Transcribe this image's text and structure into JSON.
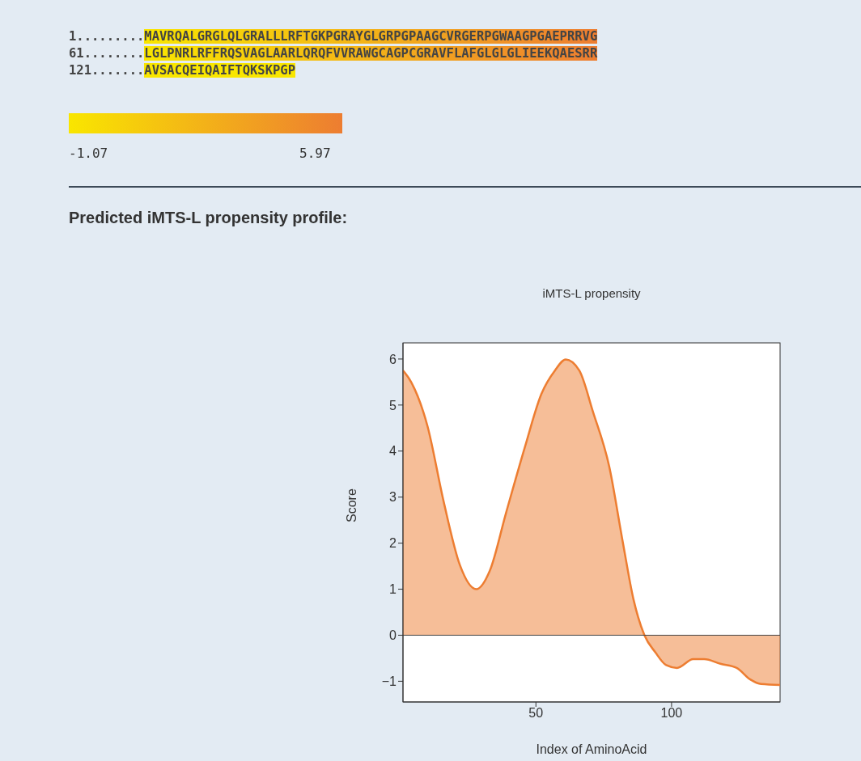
{
  "chart_data": [
    {
      "type": "other",
      "annotations": [
        "1.........MAVRQALGRGLQLGRALLLRFTGKPGRAYGLGRPGPAAGCVRGERPGWAAGPGAEPRRVG",
        "61........LGLPNRLRFFRQSVAGLAARLQRQFVVRAWGCAGPCGRAVFLAFGLGLGLIEEKQAESRR",
        "121.......AVSACQEIQAIFTQKSKPGP",
        "-1.07",
        "5.97",
        "Predicted iMTS-L propensity profile:"
      ],
      "colors": [
        "#f9e600",
        "#ed7d31"
      ]
    },
    {
      "type": "area",
      "title": "iMTS-L propensity",
      "xlabel": "Index of AminoAcid",
      "ylabel": "Score",
      "x": [
        1,
        4,
        10,
        16,
        22,
        28,
        33,
        39,
        46,
        52,
        57,
        61,
        66,
        71,
        77,
        82,
        86,
        90,
        94,
        98,
        102,
        108,
        112,
        118,
        124,
        129,
        133,
        140
      ],
      "series": [
        {
          "color": "#ed7d31",
          "values": [
            5.75,
            5.5,
            4.55,
            2.9,
            1.52,
            1.0,
            1.4,
            2.66,
            4.1,
            5.24,
            5.75,
            5.99,
            5.75,
            4.86,
            3.67,
            2.03,
            0.77,
            0,
            -0.37,
            -0.65,
            -0.71,
            -0.52,
            -0.52,
            -0.62,
            -0.71,
            -0.96,
            -1.06,
            -1.08
          ]
        }
      ],
      "xlim": [
        1,
        140
      ],
      "xticks": [
        50,
        100
      ],
      "ylim": [
        -1.45,
        6.35
      ],
      "yticks": [
        -1,
        0,
        1,
        2,
        3,
        4,
        5,
        6
      ],
      "ref_lines": [
        {
          "axis": "y",
          "value": 0,
          "color": "#444444"
        }
      ]
    }
  ]
}
